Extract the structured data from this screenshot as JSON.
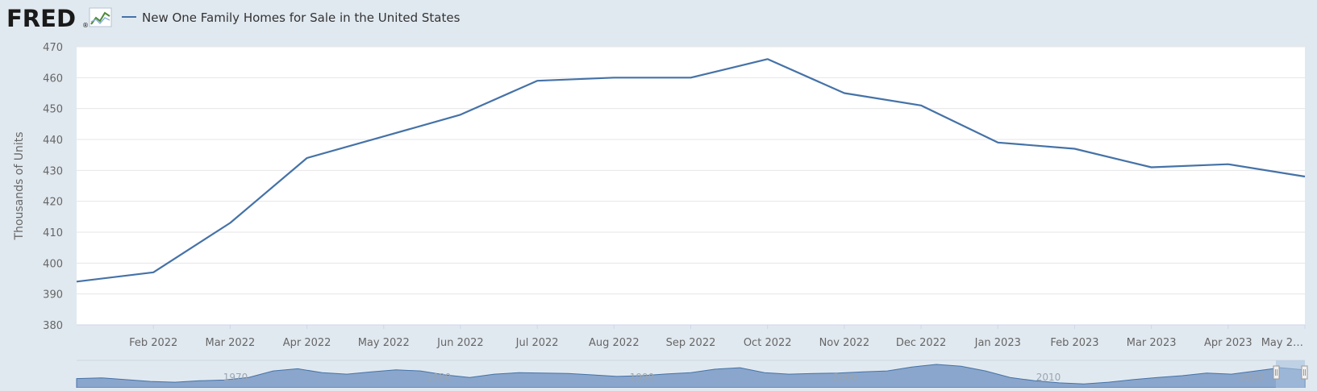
{
  "header": {
    "logo_text": "FRED",
    "logo_mark": "®",
    "legend_label": "New One Family Homes for Sale in the United States"
  },
  "colors": {
    "background": "#e1e9f0",
    "plot_background": "#ffffff",
    "series": "#4572a7",
    "grid": "#e6e6e6",
    "navigator_fill": "#8aa6cc",
    "text": "#333333",
    "tick_text": "#666666"
  },
  "chart_data": {
    "type": "line",
    "title": "",
    "xlabel": "",
    "ylabel": "Thousands of Units",
    "ylim": [
      380,
      470
    ],
    "y_ticks": [
      380,
      390,
      400,
      410,
      420,
      430,
      440,
      450,
      460,
      470
    ],
    "grid": true,
    "legend_position": "top-left",
    "x_tick_labels": [
      "Feb 2022",
      "Mar 2022",
      "Apr 2022",
      "May 2022",
      "Jun 2022",
      "Jul 2022",
      "Aug 2022",
      "Sep 2022",
      "Oct 2022",
      "Nov 2022",
      "Dec 2022",
      "Jan 2023",
      "Feb 2023",
      "Mar 2023",
      "Apr 2023",
      "May 2…"
    ],
    "series": [
      {
        "name": "New One Family Homes for Sale in the United States",
        "x": [
          "Jan 2022",
          "Feb 2022",
          "Mar 2022",
          "Apr 2022",
          "May 2022",
          "Jun 2022",
          "Jul 2022",
          "Aug 2022",
          "Sep 2022",
          "Oct 2022",
          "Nov 2022",
          "Dec 2022",
          "Jan 2023",
          "Feb 2023",
          "Mar 2023",
          "Apr 2023",
          "May 2023"
        ],
        "values": [
          394,
          397,
          413,
          434,
          441,
          448,
          459,
          460,
          460,
          466,
          455,
          451,
          439,
          437,
          431,
          432,
          428
        ]
      }
    ],
    "navigator": {
      "labels": [
        "1970",
        "1980",
        "1990",
        "2000",
        "2010",
        "2020"
      ]
    }
  }
}
